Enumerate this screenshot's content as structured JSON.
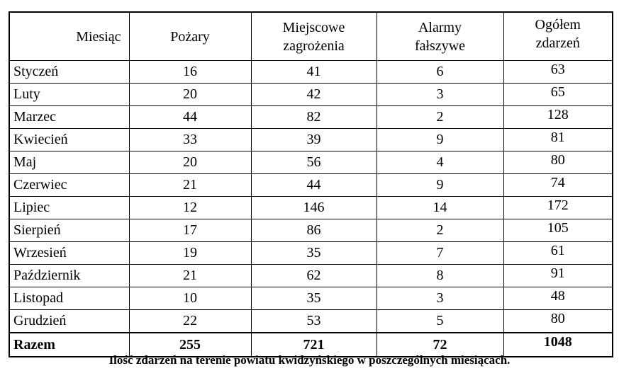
{
  "table": {
    "headers": [
      {
        "lines": [
          "Miesiąc",
          ""
        ]
      },
      {
        "lines": [
          "Pożary",
          ""
        ]
      },
      {
        "lines": [
          "Miejscowe",
          "zagrożenia"
        ]
      },
      {
        "lines": [
          "Alarmy",
          "fałszywe"
        ]
      },
      {
        "lines": [
          "Ogółem",
          "zdarzeń"
        ]
      }
    ],
    "rows": [
      [
        "Styczeń",
        "16",
        "41",
        "6",
        "63"
      ],
      [
        "Luty",
        "20",
        "42",
        "3",
        "65"
      ],
      [
        "Marzec",
        "44",
        "82",
        "2",
        "128"
      ],
      [
        "Kwiecień",
        "33",
        "39",
        "9",
        "81"
      ],
      [
        "Maj",
        "20",
        "56",
        "4",
        "80"
      ],
      [
        "Czerwiec",
        "21",
        "44",
        "9",
        "74"
      ],
      [
        "Lipiec",
        "12",
        "146",
        "14",
        "172"
      ],
      [
        "Sierpień",
        "17",
        "86",
        "2",
        "105"
      ],
      [
        "Wrzesień",
        "19",
        "35",
        "7",
        "61"
      ],
      [
        "Październik",
        "21",
        "62",
        "8",
        "91"
      ],
      [
        "Listopad",
        "10",
        "35",
        "3",
        "48"
      ],
      [
        "Grudzień",
        "22",
        "53",
        "5",
        "80"
      ]
    ],
    "total_row": [
      "Razem",
      "255",
      "721",
      "72",
      "1048"
    ]
  },
  "caption": "Ilość zdarzeń na terenie powiatu kwidzyńskiego w poszczególnych miesiącach.",
  "colors": {
    "border": "#000000",
    "text": "#000000",
    "background": "#ffffff"
  }
}
